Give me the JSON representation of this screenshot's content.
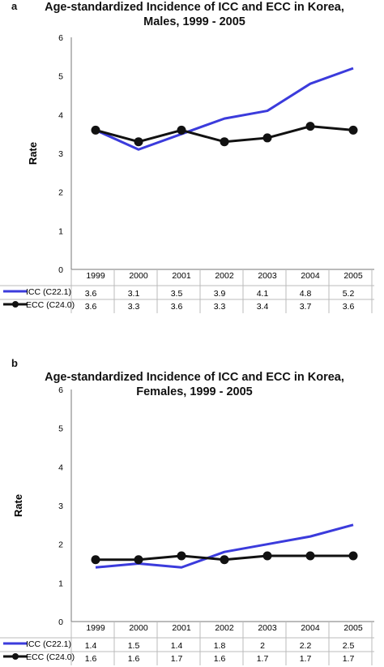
{
  "chart_data": [
    {
      "panel_letter": "a",
      "type": "line",
      "title_lines": [
        "Age-standardized Incidence of ICC and ECC in Korea,",
        "Males, 1999 - 2005"
      ],
      "ylabel": "Rate",
      "xlabel": "",
      "ylim": [
        0,
        6
      ],
      "yticks": [
        "0",
        "1",
        "2",
        "3",
        "4",
        "5",
        "6"
      ],
      "categories": [
        "1999",
        "2000",
        "2001",
        "2002",
        "2003",
        "2004",
        "2005"
      ],
      "grid": false,
      "legend": "data-table-below",
      "series": [
        {
          "name": "ICC (C22.1)",
          "color": "#3b3bdc",
          "marker": "none",
          "values": [
            3.6,
            3.1,
            3.5,
            3.9,
            4.1,
            4.8,
            5.2
          ],
          "labels": [
            "3.6",
            "3.1",
            "3.5",
            "3.9",
            "4.1",
            "4.8",
            "5.2"
          ]
        },
        {
          "name": "ECC (C24.0)",
          "color": "#111111",
          "marker": "circle",
          "values": [
            3.6,
            3.3,
            3.6,
            3.3,
            3.4,
            3.7,
            3.6
          ],
          "labels": [
            "3.6",
            "3.3",
            "3.6",
            "3.3",
            "3.4",
            "3.7",
            "3.6"
          ]
        }
      ]
    },
    {
      "panel_letter": "b",
      "type": "line",
      "title_lines": [
        "Age-standardized Incidence of ICC and ECC in Korea,",
        "Females, 1999 - 2005"
      ],
      "ylabel": "Rate",
      "xlabel": "",
      "ylim": [
        0,
        6
      ],
      "yticks": [
        "0",
        "1",
        "2",
        "3",
        "4",
        "5",
        "6"
      ],
      "categories": [
        "1999",
        "2000",
        "2001",
        "2002",
        "2003",
        "2004",
        "2005"
      ],
      "grid": false,
      "legend": "data-table-below",
      "series": [
        {
          "name": "ICC (C22.1)",
          "color": "#3b3bdc",
          "marker": "none",
          "values": [
            1.4,
            1.5,
            1.4,
            1.8,
            2.0,
            2.2,
            2.5
          ],
          "labels": [
            "1.4",
            "1.5",
            "1.4",
            "1.8",
            "2",
            "2.2",
            "2.5"
          ]
        },
        {
          "name": "ECC (C24.0)",
          "color": "#111111",
          "marker": "circle",
          "values": [
            1.6,
            1.6,
            1.7,
            1.6,
            1.7,
            1.7,
            1.7
          ],
          "labels": [
            "1.6",
            "1.6",
            "1.7",
            "1.6",
            "1.7",
            "1.7",
            "1.7"
          ]
        }
      ]
    }
  ]
}
